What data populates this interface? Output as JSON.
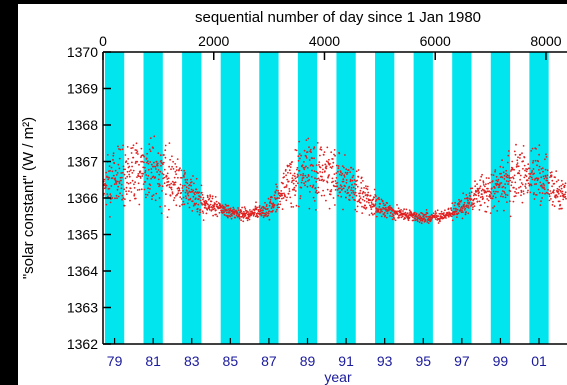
{
  "chart_data": {
    "type": "scatter",
    "title": "",
    "top_axis": {
      "label": "sequential number of day since 1 Jan 1980",
      "ticks": [
        0,
        2000,
        4000,
        6000,
        8000
      ],
      "tick_labels": [
        "0",
        "2000",
        "4000",
        "6000",
        "8000"
      ],
      "range": [
        0,
        8380
      ]
    },
    "x_axis": {
      "label": "year",
      "tick_labels": [
        "79",
        "81",
        "83",
        "85",
        "87",
        "89",
        "91",
        "93",
        "95",
        "97",
        "99",
        "01"
      ],
      "range": [
        1978.9,
        2002.95
      ]
    },
    "y_axis": {
      "label": "\"solar constant\" (W / m²)",
      "ticks": [
        1362,
        1363,
        1364,
        1365,
        1366,
        1367,
        1368,
        1369,
        1370
      ],
      "tick_labels": [
        "1362",
        "1363",
        "1364",
        "1365",
        "1366",
        "1367",
        "1368",
        "1369",
        "1370"
      ],
      "range": [
        1362,
        1370
      ]
    },
    "shaded_year_bands": [
      [
        1979,
        1980
      ],
      [
        1981,
        1982
      ],
      [
        1983,
        1984
      ],
      [
        1985,
        1986
      ],
      [
        1987,
        1988
      ],
      [
        1989,
        1990
      ],
      [
        1991,
        1992
      ],
      [
        1993,
        1994
      ],
      [
        1995,
        1996
      ],
      [
        1997,
        1998
      ],
      [
        1999,
        2000
      ],
      [
        2001,
        2002
      ]
    ],
    "series": [
      {
        "color": "#e02020",
        "trend_x_year": [
          1978.9,
          1979.5,
          1980.5,
          1981.5,
          1982.5,
          1983.5,
          1984.5,
          1985.5,
          1986.5,
          1987.5,
          1988.5,
          1989.5,
          1990.5,
          1991.5,
          1992.5,
          1993.5,
          1994.5,
          1995.5,
          1996.5,
          1997.5,
          1998.5,
          1999.5,
          2000.5,
          2001.5,
          2002.5
        ],
        "trend_y": [
          1366.4,
          1366.6,
          1366.8,
          1366.7,
          1366.6,
          1366.1,
          1365.8,
          1365.6,
          1365.55,
          1365.7,
          1366.4,
          1366.8,
          1366.7,
          1366.5,
          1366.0,
          1365.7,
          1365.55,
          1365.45,
          1365.5,
          1365.75,
          1366.1,
          1366.3,
          1366.7,
          1366.6,
          1366.1
        ]
      }
    ],
    "colors": {
      "plot_background": "#ffffff",
      "year_band": "#00e5ee",
      "frame_background": "#000000",
      "points": "#e02020",
      "year_tick_text": "#1a1a9c"
    },
    "grid": false,
    "legend": "none"
  }
}
